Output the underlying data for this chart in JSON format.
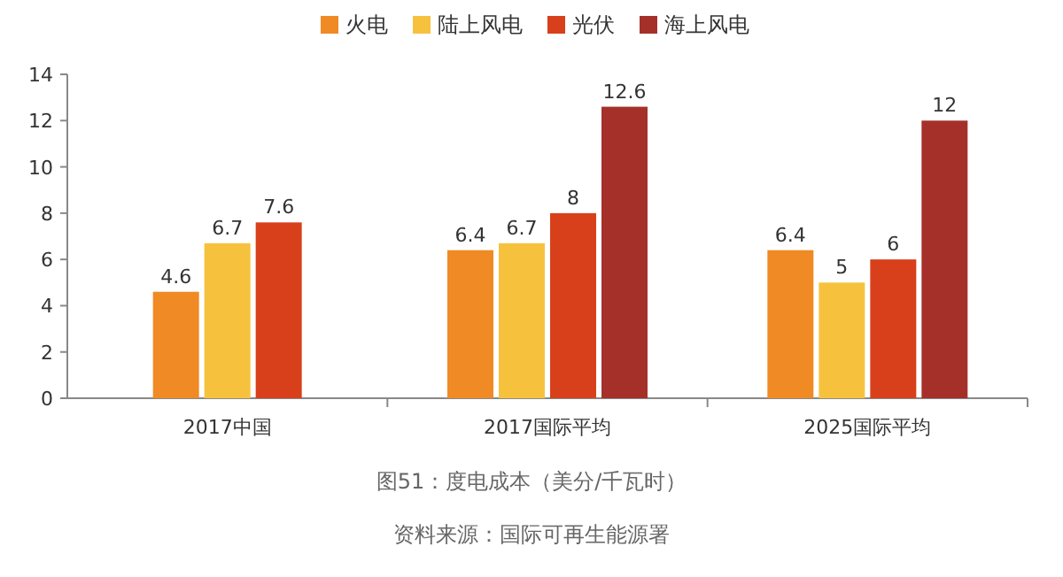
{
  "chart_data": {
    "type": "bar",
    "categories": [
      "2017中国",
      "2017国际平均",
      "2025国际平均"
    ],
    "series": [
      {
        "name": "火电",
        "color": "#f08a24",
        "values": [
          4.6,
          6.4,
          6.4
        ]
      },
      {
        "name": "陆上风电",
        "color": "#f6c23e",
        "values": [
          6.7,
          6.7,
          5
        ]
      },
      {
        "name": "光伏",
        "color": "#d8401c",
        "values": [
          7.6,
          8,
          6
        ]
      },
      {
        "name": "海上风电",
        "color": "#a5302a",
        "values": [
          null,
          12.6,
          12
        ]
      }
    ],
    "ylim": [
      0,
      14
    ],
    "yticks": [
      0,
      2,
      4,
      6,
      8,
      10,
      12,
      14
    ],
    "data_labels": true,
    "legend": "top",
    "annotations": [
      "图51：度电成本（美分/千瓦时）",
      "资料来源：国际可再生能源署"
    ]
  }
}
